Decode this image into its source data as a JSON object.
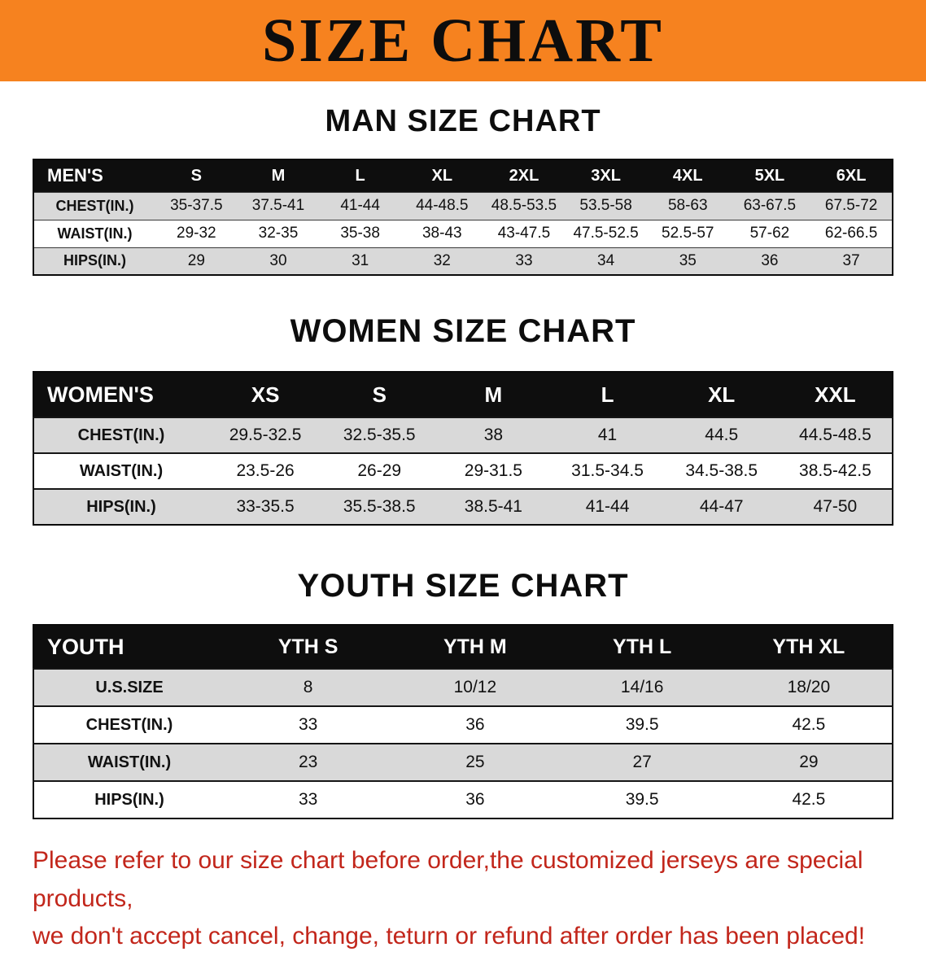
{
  "banner": {
    "title": "SIZE CHART"
  },
  "colors": {
    "banner_bg": "#f6821f",
    "table_header_bg": "#0e0e0e",
    "row_shade": "#d9d9d9",
    "disclaimer_text": "#c2261b"
  },
  "men": {
    "heading": "MAN SIZE CHART",
    "table": {
      "header": [
        "MEN'S",
        "S",
        "M",
        "L",
        "XL",
        "2XL",
        "3XL",
        "4XL",
        "5XL",
        "6XL"
      ],
      "rows": [
        {
          "label": "CHEST(IN.)",
          "values": [
            "35-37.5",
            "37.5-41",
            "41-44",
            "44-48.5",
            "48.5-53.5",
            "53.5-58",
            "58-63",
            "63-67.5",
            "67.5-72"
          ]
        },
        {
          "label": "WAIST(IN.)",
          "values": [
            "29-32",
            "32-35",
            "35-38",
            "38-43",
            "43-47.5",
            "47.5-52.5",
            "52.5-57",
            "57-62",
            "62-66.5"
          ]
        },
        {
          "label": "HIPS(IN.)",
          "values": [
            "29",
            "30",
            "31",
            "32",
            "33",
            "34",
            "35",
            "36",
            "37"
          ]
        }
      ]
    }
  },
  "women": {
    "heading": "WOMEN SIZE CHART",
    "table": {
      "header": [
        "WOMEN'S",
        "XS",
        "S",
        "M",
        "L",
        "XL",
        "XXL"
      ],
      "rows": [
        {
          "label": "CHEST(IN.)",
          "values": [
            "29.5-32.5",
            "32.5-35.5",
            "38",
            "41",
            "44.5",
            "44.5-48.5"
          ]
        },
        {
          "label": "WAIST(IN.)",
          "values": [
            "23.5-26",
            "26-29",
            "29-31.5",
            "31.5-34.5",
            "34.5-38.5",
            "38.5-42.5"
          ]
        },
        {
          "label": "HIPS(IN.)",
          "values": [
            "33-35.5",
            "35.5-38.5",
            "38.5-41",
            "41-44",
            "44-47",
            "47-50"
          ]
        }
      ]
    }
  },
  "youth": {
    "heading": "YOUTH SIZE CHART",
    "table": {
      "header": [
        "YOUTH",
        "YTH S",
        "YTH M",
        "YTH L",
        "YTH XL"
      ],
      "rows": [
        {
          "label": "U.S.SIZE",
          "values": [
            "8",
            "10/12",
            "14/16",
            "18/20"
          ]
        },
        {
          "label": "CHEST(IN.)",
          "values": [
            "33",
            "36",
            "39.5",
            "42.5"
          ]
        },
        {
          "label": "WAIST(IN.)",
          "values": [
            "23",
            "25",
            "27",
            "29"
          ]
        },
        {
          "label": "HIPS(IN.)",
          "values": [
            "33",
            "36",
            "39.5",
            "42.5"
          ]
        }
      ]
    }
  },
  "disclaimer": {
    "line1": "Please refer to our size chart before order,the customized jerseys are special products,",
    "line2": "we don't accept cancel, change, teturn or refund after order has been placed!"
  }
}
